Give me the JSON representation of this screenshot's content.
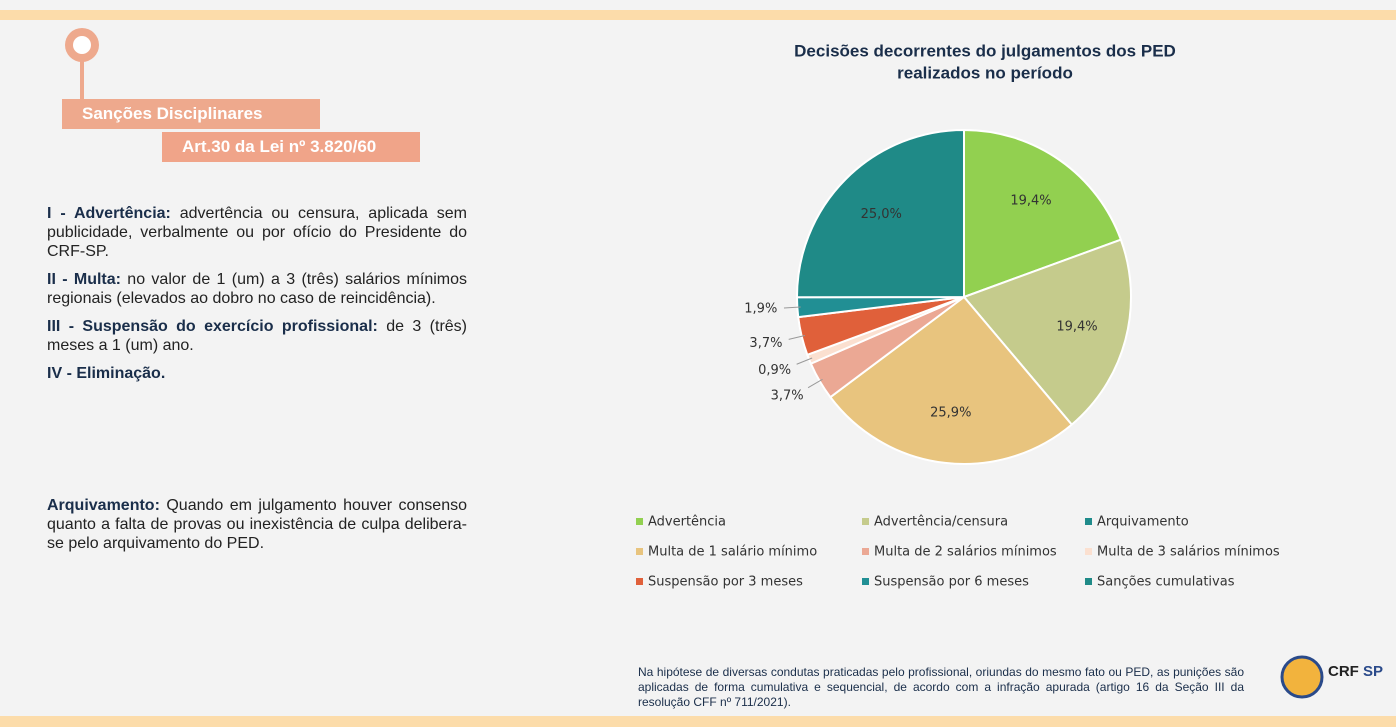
{
  "header": {
    "badge": "Sanções Disciplinares",
    "subtitle": "Art.30 da Lei nº 3.820/60"
  },
  "items": [
    {
      "term": "I - Advertência:",
      "text": " advertência ou censura, aplicada sem publicidade, verbalmente ou por ofício do Presidente do CRF-SP."
    },
    {
      "term": "II - Multa:",
      "text": " no valor de 1 (um) a 3 (três) salários mínimos regionais (elevados ao dobro no caso de reincidência)."
    },
    {
      "term": "III - Suspensão do exercício profissional:",
      "text": " de 3 (três) meses a 1 (um) ano."
    },
    {
      "term": "IV - Eliminação."
    }
  ],
  "archive": {
    "term": "Arquivamento:",
    "text": " Quando em julgamento houver consenso quanto a falta de provas ou inexistência de culpa delibera-se pelo arquivamento do PED."
  },
  "footnote": "Na hipótese de diversas condutas praticadas pelo profissional, oriundas do mesmo fato ou PED, as punições são aplicadas de forma cumulativa e sequencial, de acordo com a infração apurada (artigo 16 da Seção III da resolução CFF nº 711/2021).",
  "logo": {
    "name": "CRF",
    "state": "SP"
  },
  "chart_data": {
    "type": "pie",
    "title": "Decisões decorrentes do julgamentos dos PED realizados no período",
    "categories": [
      "Advertência",
      "Advertência/censura",
      "Arquivamento",
      "Multa de 1 salário mínimo",
      "Multa de 2 salários mínimos",
      "Multa de 3 salários mínimos",
      "Suspensão por 3 meses",
      "Suspensão por 6 meses",
      "Sanções cumulativas"
    ],
    "values": [
      19.4,
      19.4,
      0,
      25.9,
      3.7,
      0.9,
      3.7,
      1.9,
      25.0
    ],
    "value_labels": [
      "19,4%",
      "19,4%",
      null,
      "25,9%",
      "3,7%",
      "0,9%",
      "3,7%",
      "1,9%",
      "25,0%"
    ],
    "colors": [
      "#92d050",
      "#c5cb8c",
      "#1f8b8b",
      "#e8c47e",
      "#eba894",
      "#fbe0d0",
      "#e0603a",
      "#218f94",
      "#1f8a87"
    ],
    "legend": "bottom"
  }
}
